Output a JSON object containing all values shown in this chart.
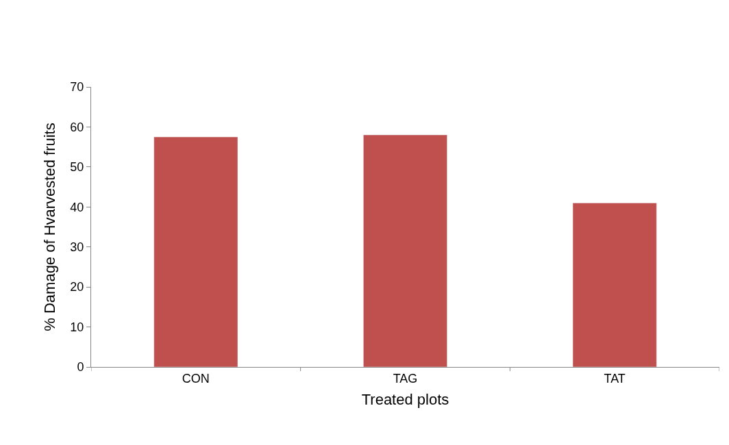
{
  "chart_data": {
    "type": "bar",
    "xlabel": "Treated plots",
    "ylabel": "% Damage of Hvarvested fruits",
    "categories": [
      "CON",
      "TAG",
      "TAT"
    ],
    "values": [
      57.5,
      58,
      41
    ],
    "color": "#c0504d",
    "ylim": [
      0,
      70
    ],
    "yticks": [
      0,
      10,
      20,
      30,
      40,
      50,
      60,
      70
    ]
  }
}
